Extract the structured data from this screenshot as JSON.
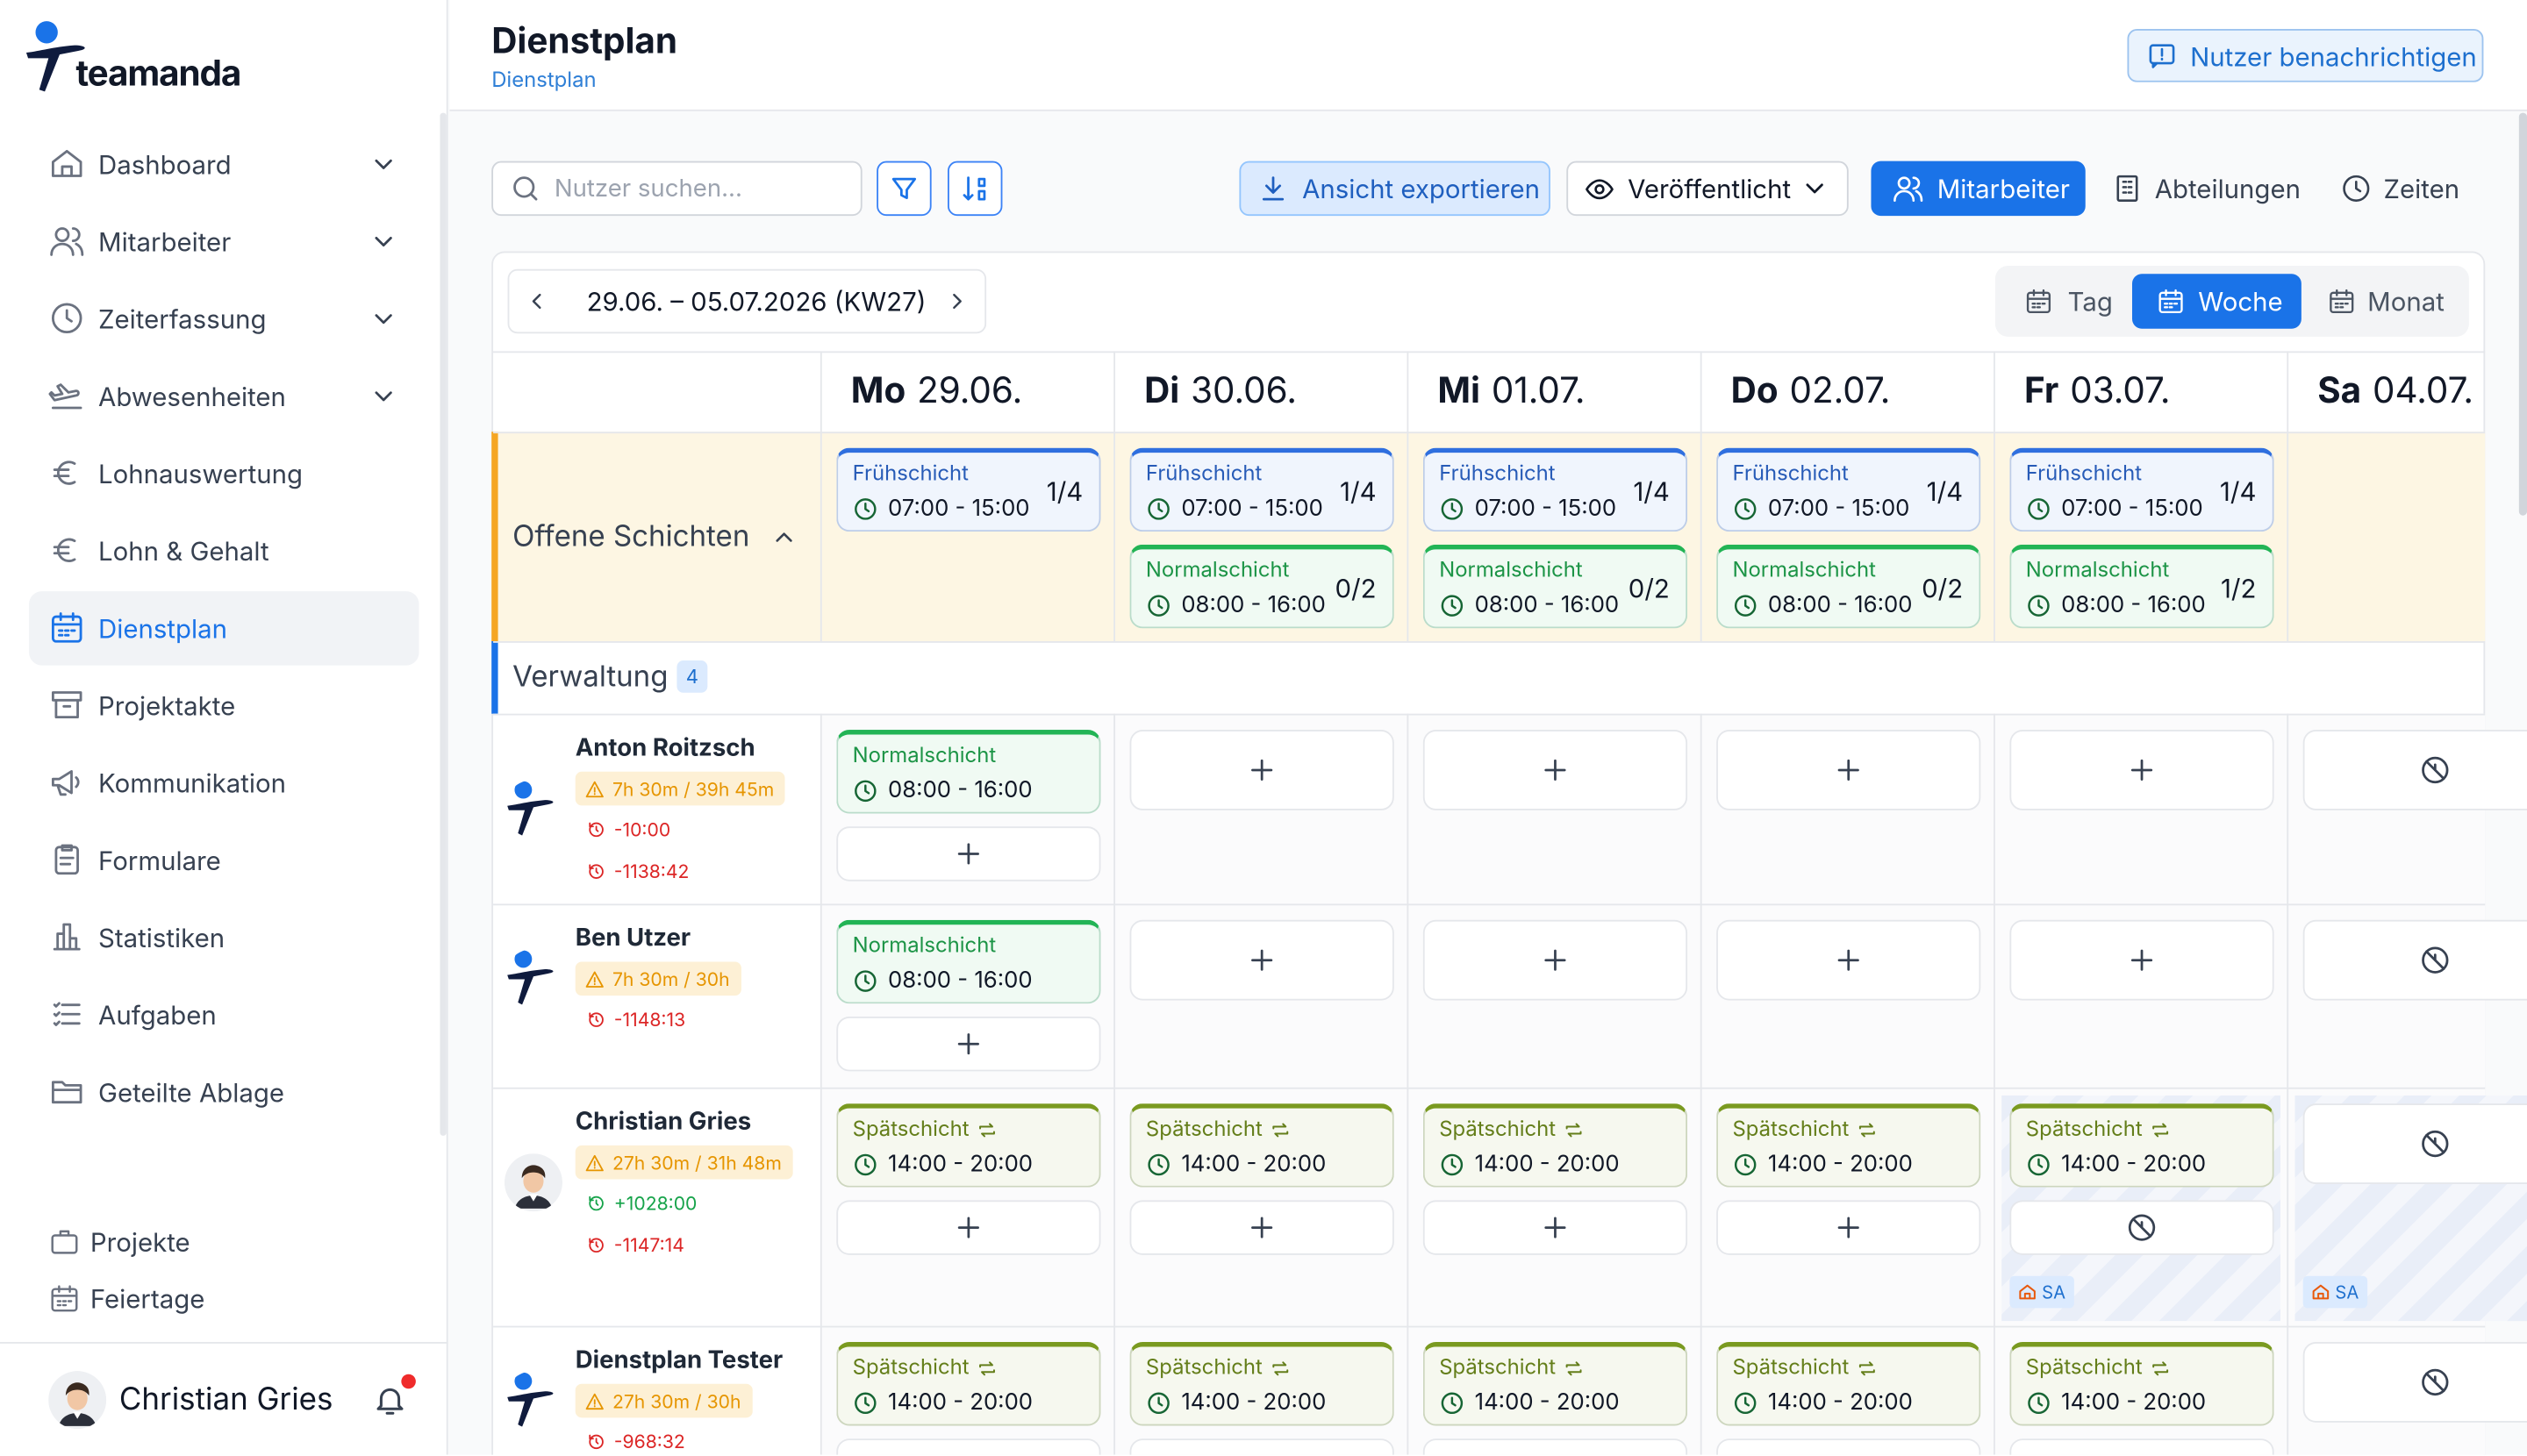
{
  "sidebar": {
    "logo": "teamanda",
    "nav": [
      "Dashboard",
      "Mitarbeiter",
      "Zeiterfassung",
      "Abwesenheiten",
      "Lohnauswertung",
      "Lohn & Gehalt",
      "Dienstplan",
      "Projektakte",
      "Kommunikation",
      "Formulare",
      "Statistiken",
      "Aufgaben",
      "Geteilte Ablage"
    ],
    "extra": [
      "Projekte",
      "Feiertage"
    ],
    "user": "Christian Gries"
  },
  "header": {
    "title": "Dienstplan",
    "breadcrumb": "Dienstplan",
    "notify_button": "Nutzer benachrichtigen"
  },
  "toolbar": {
    "search_placeholder": "Nutzer suchen...",
    "export": "Ansicht exportieren",
    "status": "Veröffentlicht",
    "views": [
      "Mitarbeiter",
      "Abteilungen",
      "Zeiten"
    ]
  },
  "calendar": {
    "range": "29.06. – 05.07.2026 (KW27)",
    "modes": [
      "Tag",
      "Woche",
      "Monat"
    ],
    "days": [
      {
        "dow": "Mo",
        "date": "29.06."
      },
      {
        "dow": "Di",
        "date": "30.06."
      },
      {
        "dow": "Mi",
        "date": "01.07."
      },
      {
        "dow": "Do",
        "date": "02.07."
      },
      {
        "dow": "Fr",
        "date": "03.07."
      },
      {
        "dow": "Sa",
        "date": "04.07."
      }
    ],
    "shift_types": [
      {
        "name": "Frühschicht",
        "color": "#2f6fdf"
      },
      {
        "name": "Normalschicht",
        "color": "#22b455"
      },
      {
        "name": "Spätschicht",
        "color": "#7a9a20"
      }
    ],
    "open_shifts": {
      "label": "Offene Schichten",
      "cells": [
        [
          {
            "type": 0,
            "time": "07:00 - 15:00",
            "count": "1/4"
          }
        ],
        [
          {
            "type": 0,
            "time": "07:00 - 15:00",
            "count": "1/4"
          },
          {
            "type": 1,
            "time": "08:00 - 16:00",
            "count": "0/2"
          }
        ],
        [
          {
            "type": 0,
            "time": "07:00 - 15:00",
            "count": "1/4"
          },
          {
            "type": 1,
            "time": "08:00 - 16:00",
            "count": "0/2"
          }
        ],
        [
          {
            "type": 0,
            "time": "07:00 - 15:00",
            "count": "1/4"
          },
          {
            "type": 1,
            "time": "08:00 - 16:00",
            "count": "0/2"
          }
        ],
        [
          {
            "type": 0,
            "time": "07:00 - 15:00",
            "count": "1/4"
          },
          {
            "type": 1,
            "time": "08:00 - 16:00",
            "count": "1/2"
          }
        ],
        []
      ]
    },
    "department": {
      "name": "Verwaltung",
      "count": 4
    },
    "employees": [
      {
        "name": "Anton Roitzsch",
        "hours": "7h 30m / 39h 45m",
        "balances": [
          "-10:00",
          "-1138:42"
        ],
        "cells": [
          {
            "shifts": [
              {
                "type": 1,
                "time": "08:00 - 16:00"
              }
            ]
          },
          {
            "shifts": []
          },
          {
            "shifts": []
          },
          {
            "shifts": []
          },
          {
            "shifts": []
          },
          {
            "shifts": []
          }
        ]
      },
      {
        "name": "Ben Utzer",
        "hours": "7h 30m / 30h",
        "balances": [
          "-1148:13"
        ],
        "cells": [
          {
            "shifts": [
              {
                "type": 1,
                "time": "08:00 - 16:00"
              }
            ]
          },
          {
            "shifts": []
          },
          {
            "shifts": []
          },
          {
            "shifts": []
          },
          {
            "shifts": []
          },
          {
            "shifts": []
          }
        ]
      },
      {
        "name": "Christian Gries",
        "hours": "27h 30m / 31h 48m",
        "balances": [
          "+1028:00",
          "-1147:14"
        ],
        "cells": [
          {
            "shifts": [
              {
                "type": 2,
                "time": "14:00 - 20:00"
              }
            ]
          },
          {
            "shifts": [
              {
                "type": 2,
                "time": "14:00 - 20:00"
              }
            ]
          },
          {
            "shifts": [
              {
                "type": 2,
                "time": "14:00 - 20:00"
              }
            ]
          },
          {
            "shifts": [
              {
                "type": 2,
                "time": "14:00 - 20:00"
              }
            ]
          },
          {
            "shifts": [
              {
                "type": 2,
                "time": "14:00 - 20:00"
              }
            ],
            "absence": "SA"
          },
          {
            "shifts": [],
            "absence": "SA"
          }
        ]
      },
      {
        "name": "Dienstplan Tester",
        "hours": "27h 30m / 30h",
        "balances": [
          "-968:32"
        ],
        "cells": [
          {
            "shifts": [
              {
                "type": 2,
                "time": "14:00 - 20:00"
              }
            ]
          },
          {
            "shifts": [
              {
                "type": 2,
                "time": "14:00 - 20:00"
              }
            ]
          },
          {
            "shifts": [
              {
                "type": 2,
                "time": "14:00 - 20:00"
              }
            ]
          },
          {
            "shifts": [
              {
                "type": 2,
                "time": "14:00 - 20:00"
              }
            ]
          },
          {
            "shifts": [
              {
                "type": 2,
                "time": "14:00 - 20:00"
              }
            ]
          },
          {
            "shifts": []
          }
        ]
      }
    ]
  }
}
